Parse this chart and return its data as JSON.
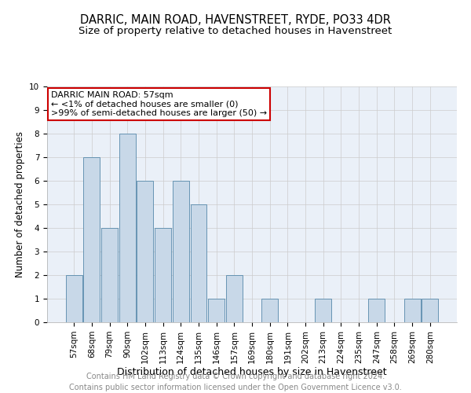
{
  "title": "DARRIC, MAIN ROAD, HAVENSTREET, RYDE, PO33 4DR",
  "subtitle": "Size of property relative to detached houses in Havenstreet",
  "xlabel": "Distribution of detached houses by size in Havenstreet",
  "ylabel": "Number of detached properties",
  "categories": [
    "57sqm",
    "68sqm",
    "79sqm",
    "90sqm",
    "102sqm",
    "113sqm",
    "124sqm",
    "135sqm",
    "146sqm",
    "157sqm",
    "169sqm",
    "180sqm",
    "191sqm",
    "202sqm",
    "213sqm",
    "224sqm",
    "235sqm",
    "247sqm",
    "258sqm",
    "269sqm",
    "280sqm"
  ],
  "values": [
    2,
    7,
    4,
    8,
    6,
    4,
    6,
    5,
    1,
    2,
    0,
    1,
    0,
    0,
    1,
    0,
    0,
    1,
    0,
    1,
    1
  ],
  "bar_color": "#c8d8e8",
  "bar_edge_color": "#5588aa",
  "annotation_box_color": "#cc0000",
  "annotation_title": "DARRIC MAIN ROAD: 57sqm",
  "annotation_line1": "← <1% of detached houses are smaller (0)",
  "annotation_line2": ">99% of semi-detached houses are larger (50) →",
  "footer_line1": "Contains HM Land Registry data © Crown copyright and database right 2024.",
  "footer_line2": "Contains public sector information licensed under the Open Government Licence v3.0.",
  "ylim": [
    0,
    10
  ],
  "yticks": [
    0,
    1,
    2,
    3,
    4,
    5,
    6,
    7,
    8,
    9,
    10
  ],
  "title_fontsize": 10.5,
  "subtitle_fontsize": 9.5,
  "xlabel_fontsize": 9,
  "ylabel_fontsize": 8.5,
  "tick_fontsize": 7.5,
  "annotation_fontsize": 8,
  "footer_fontsize": 7,
  "background_color": "#ffffff",
  "axes_background": "#eaf0f8",
  "grid_color": "#cccccc"
}
